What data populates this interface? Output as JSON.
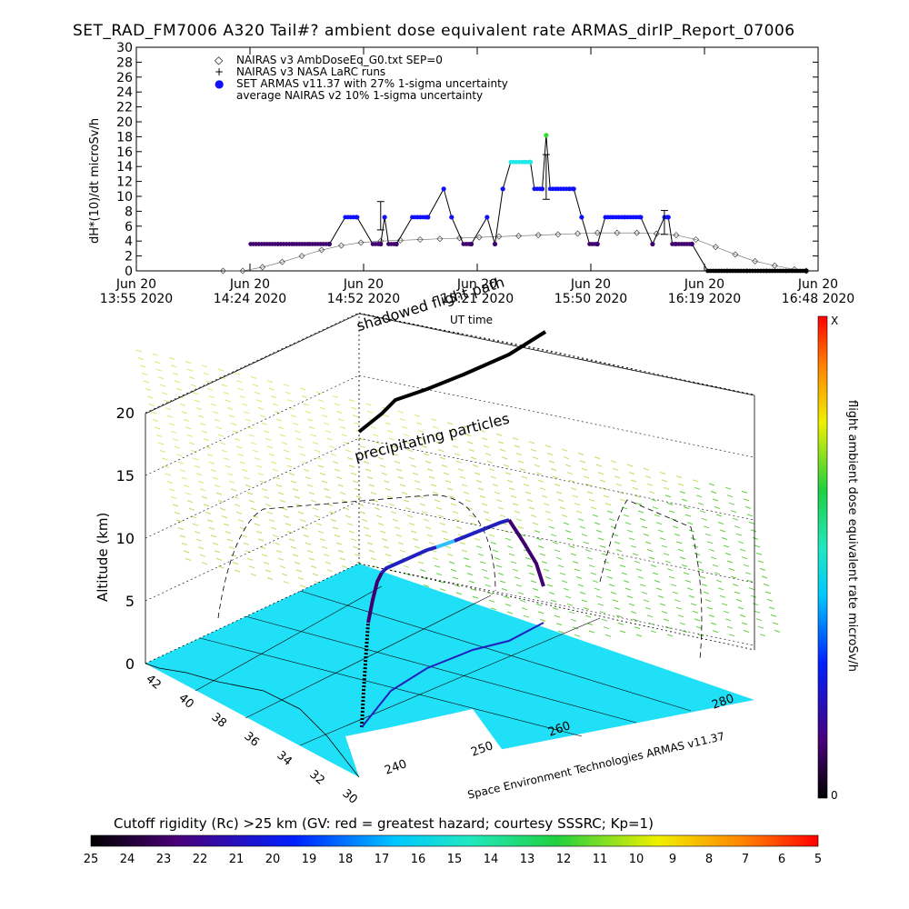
{
  "title": "SET_RAD_FM7006  A320 Tail#? ambient dose equivalent rate ARMAS_dirIP_Report_07006",
  "chart_data": [
    {
      "type": "scatter",
      "ylabel": "dH*(10)/dt microSv/h",
      "xlabel": "UT time",
      "ylim": [
        0,
        30
      ],
      "yticks": [
        "0",
        "2",
        "4",
        "6",
        "8",
        "10",
        "12",
        "14",
        "16",
        "18",
        "20",
        "22",
        "24",
        "26",
        "28",
        "30"
      ],
      "xticks": [
        {
          "top": "Jun 20",
          "bottom": "13:55 2020"
        },
        {
          "top": "Jun 20",
          "bottom": "14:24 2020"
        },
        {
          "top": "Jun 20",
          "bottom": "14:52 2020"
        },
        {
          "top": "Jun 20",
          "bottom": "15:21 2020"
        },
        {
          "top": "Jun 20",
          "bottom": "15:50 2020"
        },
        {
          "top": "Jun 20",
          "bottom": "16:19 2020"
        },
        {
          "top": "Jun 20",
          "bottom": "16:48 2020"
        }
      ],
      "xrange_minutes": [
        0,
        173
      ],
      "legend": [
        {
          "symbol": "diamond",
          "label": "NAIRAS v3 AmbDoseEq_G0.txt SEP=0"
        },
        {
          "symbol": "plus",
          "label": "NAIRAS v3 NASA LaRC runs"
        },
        {
          "symbol": "dot",
          "label": "SET ARMAS v11.37 with 27% 1-sigma uncertainty"
        },
        {
          "symbol": "none",
          "label": "average NAIRAS v2 10% 1-sigma uncertainty"
        }
      ],
      "legend_position": "top-left",
      "series": [
        {
          "name": "SET ARMAS v11.37 with 27% 1-sigma uncertainty",
          "x": [
            29,
            36,
            40,
            44,
            49,
            53,
            56,
            60,
            62,
            63,
            64,
            66,
            70,
            74,
            78,
            80,
            83,
            85,
            89,
            91,
            93,
            95,
            99,
            100,
            101,
            103,
            104,
            105,
            107,
            110,
            111,
            113,
            115,
            117,
            119,
            121,
            124,
            128,
            131,
            134,
            135,
            136,
            137,
            139,
            141,
            145,
            150,
            155,
            160,
            165,
            170
          ],
          "y": [
            3.6,
            3.6,
            3.6,
            3.6,
            3.6,
            7.2,
            7.2,
            3.6,
            3.6,
            7.2,
            3.6,
            3.6,
            7.2,
            7.2,
            11,
            7.2,
            3.6,
            3.6,
            7.2,
            3.6,
            11,
            14.6,
            14.6,
            14.6,
            11,
            11,
            18.2,
            11,
            11,
            11,
            11,
            7.2,
            3.6,
            3.6,
            7.2,
            7.2,
            7.2,
            7.2,
            3.6,
            7.2,
            7.2,
            3.6,
            3.6,
            3.6,
            3.6,
            0,
            0,
            0,
            0,
            0,
            0
          ]
        },
        {
          "name": "NAIRAS v3 AmbDoseEq_G0.txt SEP=0",
          "x": [
            22,
            27,
            32,
            37,
            42,
            47,
            52,
            57,
            62,
            67,
            72,
            77,
            82,
            87,
            92,
            97,
            102,
            107,
            112,
            117,
            122,
            127,
            132,
            137,
            142,
            147,
            152,
            157,
            162,
            167,
            170
          ],
          "y": [
            0,
            0,
            0.5,
            1.2,
            2.0,
            2.8,
            3.4,
            3.8,
            4.0,
            4.1,
            4.2,
            4.3,
            4.4,
            4.5,
            4.6,
            4.7,
            4.8,
            4.9,
            5.0,
            5.1,
            5.1,
            5.1,
            5.0,
            4.8,
            4.2,
            3.2,
            2.2,
            1.3,
            0.7,
            0.2,
            0
          ]
        }
      ],
      "nairas_larc_points": [
        {
          "x": 62,
          "y": 7.4,
          "err": 1.9
        },
        {
          "x": 104,
          "y": 12.6,
          "err": 3.0
        },
        {
          "x": 134,
          "y": 6.5,
          "err": 1.6
        }
      ]
    },
    {
      "type": "scatter",
      "subtype": "3d",
      "zlabel": "Altitude (km)",
      "zticks": [
        "0",
        "5",
        "10",
        "15",
        "20"
      ],
      "yticks": [
        "42",
        "40",
        "38",
        "36",
        "34",
        "32",
        "30"
      ],
      "xticks": [
        "240",
        "250",
        "260",
        "280"
      ],
      "annotations": [
        "shadowed flight path",
        "precipitating particles"
      ],
      "credit": "Space Environment Technologies ARMAS v11.37",
      "colorbar": {
        "label": "flight ambient dose equivalent rate microSv/h",
        "top": "X",
        "bottom": "0"
      }
    }
  ],
  "cutoff_bar": {
    "label": "Cutoff rigidity (Rc) >25 km (GV: red = greatest hazard; courtesy SSSRC; Kp=1)",
    "ticks": [
      "25",
      "24",
      "23",
      "22",
      "21",
      "20",
      "19",
      "18",
      "17",
      "16",
      "15",
      "14",
      "13",
      "12",
      "11",
      "10",
      "9",
      "8",
      "7",
      "6",
      "5"
    ]
  },
  "colors": {
    "armas": "#1010ff",
    "armas_low": "#400070",
    "armas_high": "#20e8e8",
    "armas_peak": "#30e030",
    "surface": "#20e0f8",
    "flight": "#000000"
  }
}
